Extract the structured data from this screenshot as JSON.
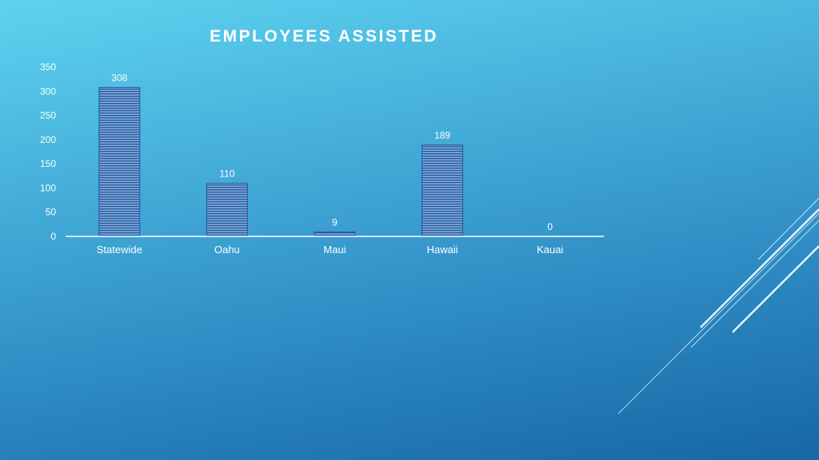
{
  "slide": {
    "title": "EMPLOYEES ASSISTED"
  },
  "colors": {
    "bar_fill": "#1f5aa6",
    "bar_stripe": "#dce9f7",
    "axis_line": "#ffffff",
    "text": "#ffffff"
  },
  "chart_data": {
    "type": "bar",
    "title": "EMPLOYEES ASSISTED",
    "categories": [
      "Statewide",
      "Oahu",
      "Maui",
      "Hawaii",
      "Kauai"
    ],
    "values": [
      308,
      110,
      9,
      189,
      0
    ],
    "data_labels": [
      "308",
      "110",
      "9",
      "189",
      "0"
    ],
    "ylim": [
      0,
      350
    ],
    "yticks": [
      0,
      50,
      100,
      150,
      200,
      250,
      300,
      350
    ],
    "xlabel": "",
    "ylabel": "",
    "grid": false,
    "legend": "none"
  }
}
